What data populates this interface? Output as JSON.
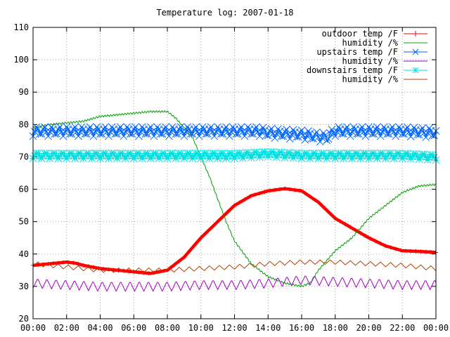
{
  "chart_data": {
    "type": "line",
    "title": "Temperature log: 2007-01-18",
    "xlabel": "",
    "ylabel": "",
    "xlim": [
      "00:00",
      "24:00"
    ],
    "ylim": [
      20,
      110
    ],
    "x_ticks": [
      "00:00",
      "02:00",
      "04:00",
      "06:00",
      "08:00",
      "10:00",
      "12:00",
      "14:00",
      "16:00",
      "18:00",
      "20:00",
      "22:00",
      "00:00"
    ],
    "y_ticks": [
      "20",
      "30",
      "40",
      "50",
      "60",
      "70",
      "80",
      "90",
      "100",
      "110"
    ],
    "grid": true,
    "legend_position": "top-right",
    "series": [
      {
        "name": "outdoor temp /F",
        "color": "#ff0000",
        "marker": "plus",
        "x": [
          "00:00",
          "01:00",
          "02:00",
          "02:30",
          "03:00",
          "04:00",
          "05:00",
          "06:00",
          "07:00",
          "08:00",
          "09:00",
          "10:00",
          "11:00",
          "12:00",
          "13:00",
          "14:00",
          "15:00",
          "16:00",
          "17:00",
          "18:00",
          "19:00",
          "20:00",
          "21:00",
          "22:00",
          "23:00",
          "24:00"
        ],
        "values": [
          36.5,
          37.0,
          37.5,
          37.2,
          36.5,
          35.5,
          35.0,
          34.5,
          34.0,
          35.0,
          39.0,
          45.0,
          50.0,
          55.0,
          58.0,
          59.5,
          60.2,
          59.5,
          56.0,
          51.0,
          48.0,
          45.0,
          42.5,
          41.0,
          40.8,
          40.5
        ]
      },
      {
        "name": "humidity /%",
        "color": "#00a000",
        "marker": "none",
        "x": [
          "00:00",
          "01:00",
          "02:00",
          "03:00",
          "04:00",
          "05:00",
          "06:00",
          "07:00",
          "08:00",
          "08:30",
          "09:00",
          "09:30",
          "10:00",
          "10:30",
          "11:00",
          "11:30",
          "12:00",
          "13:00",
          "14:00",
          "15:00",
          "16:00",
          "16:30",
          "17:00",
          "17:30",
          "18:00",
          "19:00",
          "20:00",
          "21:00",
          "22:00",
          "23:00",
          "24:00"
        ],
        "values": [
          79.0,
          80.0,
          80.5,
          81.0,
          82.5,
          83.0,
          83.5,
          84.0,
          84.0,
          82.0,
          79.0,
          76.0,
          70.0,
          64.0,
          57.0,
          50.0,
          44.0,
          37.0,
          33.0,
          31.0,
          30.0,
          31.0,
          35.0,
          38.0,
          41.0,
          45.0,
          51.0,
          55.0,
          59.0,
          61.0,
          61.5
        ]
      },
      {
        "name": "upstairs temp /F",
        "color": "#0066ff",
        "marker": "cross",
        "x": [
          "00:00",
          "02:00",
          "04:00",
          "06:00",
          "08:00",
          "10:00",
          "12:00",
          "13:30",
          "14:00",
          "16:00",
          "17:30",
          "18:00",
          "20:00",
          "22:00",
          "24:00"
        ],
        "values": [
          78.0,
          78.0,
          78.0,
          78.0,
          78.0,
          78.0,
          78.0,
          78.0,
          77.5,
          77.0,
          76.0,
          78.0,
          78.0,
          78.0,
          77.5
        ]
      },
      {
        "name": "humidity /%",
        "color": "#a000c0",
        "marker": "none",
        "x": [
          "00:00",
          "02:00",
          "04:00",
          "06:00",
          "08:00",
          "10:00",
          "12:00",
          "14:00",
          "16:00",
          "18:00",
          "20:00",
          "22:00",
          "24:00"
        ],
        "values": [
          31.0,
          30.5,
          30.0,
          30.0,
          30.0,
          30.5,
          30.5,
          31.0,
          32.0,
          31.5,
          31.0,
          30.5,
          30.5
        ]
      },
      {
        "name": "downstairs temp /F",
        "color": "#00e0e0",
        "marker": "star",
        "x": [
          "00:00",
          "02:00",
          "04:00",
          "06:00",
          "08:00",
          "10:00",
          "12:00",
          "14:00",
          "16:00",
          "18:00",
          "20:00",
          "22:00",
          "24:00"
        ],
        "values": [
          70.5,
          70.5,
          70.5,
          70.5,
          70.5,
          70.5,
          70.5,
          71.0,
          70.5,
          70.5,
          70.5,
          70.5,
          70.0
        ]
      },
      {
        "name": "humidity /%",
        "color": "#b04000",
        "marker": "none",
        "x": [
          "00:00",
          "02:00",
          "04:00",
          "06:00",
          "08:00",
          "10:00",
          "12:00",
          "14:00",
          "16:00",
          "18:00",
          "20:00",
          "22:00",
          "24:00"
        ],
        "values": [
          37.0,
          36.0,
          35.0,
          35.0,
          35.0,
          35.5,
          36.0,
          37.0,
          37.5,
          37.5,
          37.0,
          36.5,
          35.5
        ]
      }
    ]
  }
}
